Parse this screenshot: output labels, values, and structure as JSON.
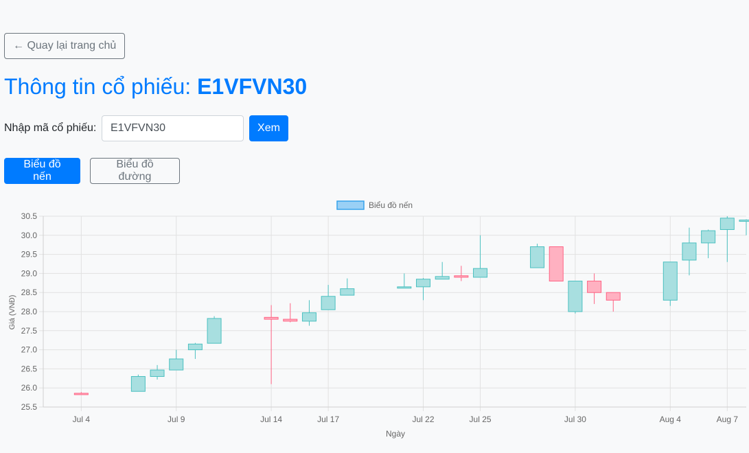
{
  "nav": {
    "back_label": "← Quay lại trang chủ"
  },
  "header": {
    "title_prefix": "Thông tin cổ phiếu: ",
    "code": "E1VFVN30"
  },
  "search": {
    "label": "Nhập mã cổ phiếu:",
    "value": "E1VFVN30",
    "button_label": "Xem"
  },
  "tabs": [
    {
      "label": "Biểu đồ nến",
      "active": true
    },
    {
      "label": "Biểu đồ đường",
      "active": false
    }
  ],
  "colors": {
    "accent": "#007bff",
    "up_fill": "#a8dfe0",
    "up_border": "#4bc0c0",
    "down_fill": "#ffb1c1",
    "down_border": "#ff6384",
    "legend_fill": "#9ad0f5",
    "legend_border": "#36a2eb"
  },
  "chart_data": {
    "type": "candlestick",
    "legend": "Biểu đồ nến",
    "xlabel": "Ngày",
    "ylabel": "Giá (VNĐ)",
    "ylim": [
      25.5,
      30.5
    ],
    "y_ticks": [
      "25.5",
      "26.0",
      "26.5",
      "27.0",
      "27.5",
      "28.0",
      "28.5",
      "29.0",
      "29.5",
      "30.0",
      "30.5"
    ],
    "x_ticks": [
      {
        "date": "2024-07-04",
        "label": "Jul 4"
      },
      {
        "date": "2024-07-09",
        "label": "Jul 9"
      },
      {
        "date": "2024-07-14",
        "label": "Jul 14"
      },
      {
        "date": "2024-07-17",
        "label": "Jul 17"
      },
      {
        "date": "2024-07-22",
        "label": "Jul 22"
      },
      {
        "date": "2024-07-25",
        "label": "Jul 25"
      },
      {
        "date": "2024-07-30",
        "label": "Jul 30"
      },
      {
        "date": "2024-08-04",
        "label": "Aug 4"
      },
      {
        "date": "2024-08-07",
        "label": "Aug 7"
      }
    ],
    "x_range": [
      "2024-07-02",
      "2024-08-08"
    ],
    "grid": true,
    "legend_position": "top-center",
    "candles": [
      {
        "date": "2024-07-04",
        "o": 25.86,
        "h": 25.89,
        "l": 25.82,
        "c": 25.84
      },
      {
        "date": "2024-07-07",
        "o": 25.91,
        "h": 26.35,
        "l": 25.91,
        "c": 26.3
      },
      {
        "date": "2024-07-08",
        "o": 26.3,
        "h": 26.6,
        "l": 26.22,
        "c": 26.47
      },
      {
        "date": "2024-07-09",
        "o": 26.47,
        "h": 27.0,
        "l": 26.47,
        "c": 26.76
      },
      {
        "date": "2024-07-10",
        "o": 27.0,
        "h": 27.18,
        "l": 26.76,
        "c": 27.15
      },
      {
        "date": "2024-07-11",
        "o": 27.17,
        "h": 27.88,
        "l": 27.17,
        "c": 27.82
      },
      {
        "date": "2024-07-14",
        "o": 27.85,
        "h": 28.17,
        "l": 26.1,
        "c": 27.8
      },
      {
        "date": "2024-07-15",
        "o": 27.8,
        "h": 28.22,
        "l": 27.72,
        "c": 27.75
      },
      {
        "date": "2024-07-16",
        "o": 27.75,
        "h": 28.3,
        "l": 27.63,
        "c": 27.97
      },
      {
        "date": "2024-07-17",
        "o": 28.05,
        "h": 28.7,
        "l": 28.05,
        "c": 28.4
      },
      {
        "date": "2024-07-18",
        "o": 28.43,
        "h": 28.87,
        "l": 28.43,
        "c": 28.6
      },
      {
        "date": "2024-07-21",
        "o": 28.62,
        "h": 29.0,
        "l": 28.62,
        "c": 28.65
      },
      {
        "date": "2024-07-22",
        "o": 28.65,
        "h": 28.88,
        "l": 28.3,
        "c": 28.85
      },
      {
        "date": "2024-07-23",
        "o": 28.85,
        "h": 29.3,
        "l": 28.85,
        "c": 28.92
      },
      {
        "date": "2024-07-24",
        "o": 28.94,
        "h": 29.2,
        "l": 28.8,
        "c": 28.9
      },
      {
        "date": "2024-07-25",
        "o": 28.9,
        "h": 30.0,
        "l": 28.9,
        "c": 29.13
      },
      {
        "date": "2024-07-28",
        "o": 29.15,
        "h": 29.78,
        "l": 29.15,
        "c": 29.7
      },
      {
        "date": "2024-07-29",
        "o": 29.7,
        "h": 29.7,
        "l": 28.8,
        "c": 28.8
      },
      {
        "date": "2024-07-30",
        "o": 28.0,
        "h": 28.8,
        "l": 27.95,
        "c": 28.8
      },
      {
        "date": "2024-07-31",
        "o": 28.8,
        "h": 29.0,
        "l": 28.2,
        "c": 28.5
      },
      {
        "date": "2024-08-01",
        "o": 28.5,
        "h": 28.5,
        "l": 28.0,
        "c": 28.3
      },
      {
        "date": "2024-08-04",
        "o": 28.3,
        "h": 29.3,
        "l": 28.15,
        "c": 29.3
      },
      {
        "date": "2024-08-05",
        "o": 29.35,
        "h": 30.2,
        "l": 28.95,
        "c": 29.8
      },
      {
        "date": "2024-08-06",
        "o": 29.8,
        "h": 30.15,
        "l": 29.4,
        "c": 30.12
      },
      {
        "date": "2024-08-07",
        "o": 30.15,
        "h": 30.5,
        "l": 29.3,
        "c": 30.45
      },
      {
        "date": "2024-08-08",
        "o": 30.38,
        "h": 30.42,
        "l": 30.0,
        "c": 30.4
      }
    ]
  }
}
